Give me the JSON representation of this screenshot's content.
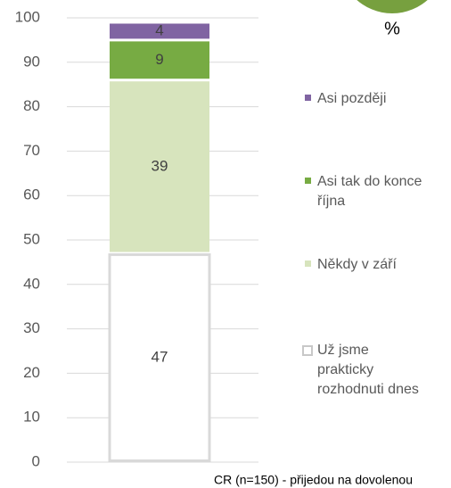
{
  "chart_data": {
    "type": "stacked_bar",
    "categories": [
      null
    ],
    "series": [
      {
        "name": "Už jsme\nprakticky\nrozhodnuti dnes",
        "color": "#ffffff",
        "values": [
          47
        ]
      },
      {
        "name": "Někdy v září",
        "color": "#d7e4bd",
        "values": [
          39
        ]
      },
      {
        "name": "Asi tak do konce\nříjna",
        "color": "#77ab43",
        "values": [
          9
        ]
      },
      {
        "name": "Asi později",
        "color": "#8064a2",
        "values": [
          4
        ]
      }
    ],
    "ylim": [
      0,
      100
    ],
    "yticks": [
      0,
      10,
      20,
      30,
      40,
      50,
      60,
      70,
      80,
      90,
      100
    ],
    "grid": true,
    "unit_label": "%",
    "note": "CR (n=150) - přijedou na dovolenou"
  }
}
